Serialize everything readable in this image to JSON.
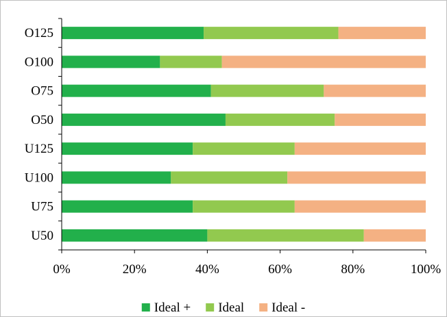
{
  "chart_data": {
    "type": "bar",
    "orientation": "horizontal",
    "stacked": true,
    "percent_stacked": true,
    "categories": [
      "O125",
      "O100",
      "O75",
      "O50",
      "U125",
      "U100",
      "U75",
      "U50"
    ],
    "series": [
      {
        "name": "Ideal +",
        "color": "#22b04b",
        "values": [
          39,
          27,
          41,
          45,
          36,
          30,
          36,
          40
        ]
      },
      {
        "name": "Ideal",
        "color": "#92c94f",
        "values": [
          37,
          17,
          31,
          30,
          28,
          32,
          28,
          43
        ]
      },
      {
        "name": "Ideal -",
        "color": "#f4b183",
        "values": [
          24,
          56,
          28,
          25,
          36,
          38,
          36,
          17
        ]
      }
    ],
    "xlim": [
      0,
      100
    ],
    "x_ticks": [
      "0%",
      "20%",
      "40%",
      "60%",
      "80%",
      "100%"
    ],
    "grid": false,
    "legend_position": "bottom"
  }
}
